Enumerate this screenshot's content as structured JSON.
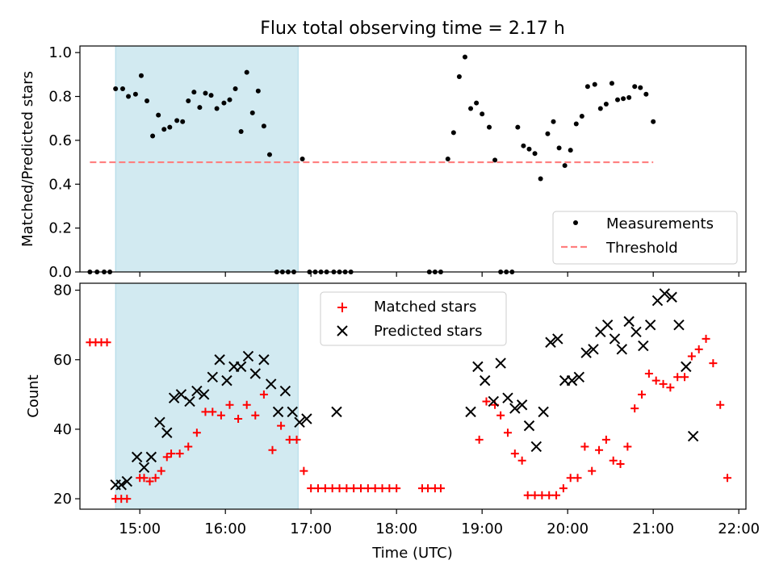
{
  "chart_data": [
    {
      "type": "scatter",
      "title": "Flux total observing time = 2.17 h",
      "xlabel": "",
      "ylabel": "Matched/Predicted stars",
      "xlim": [
        "14:18",
        "22:05"
      ],
      "ylim": [
        0,
        1.03
      ],
      "yticks": [
        0.0,
        0.2,
        0.4,
        0.6,
        0.8,
        1.0
      ],
      "yticklabels": [
        "0.0",
        "0.2",
        "0.4",
        "0.6",
        "0.8",
        "1.0"
      ],
      "xticks": [
        "15:00",
        "16:00",
        "17:00",
        "18:00",
        "19:00",
        "20:00",
        "21:00",
        "22:00"
      ],
      "shaded_region": {
        "x": [
          "14:43",
          "16:51"
        ],
        "color": "#add8e6"
      },
      "legend_position": "lower-right",
      "grid": false,
      "series": [
        {
          "name": "Measurements",
          "marker": "dot",
          "color": "#000000",
          "points": [
            [
              "14:25",
              0
            ],
            [
              "14:30",
              0
            ],
            [
              "14:35",
              0
            ],
            [
              "14:39",
              0
            ],
            [
              "14:43",
              0.835
            ],
            [
              "14:48",
              0.835
            ],
            [
              "14:52",
              0.8
            ],
            [
              "14:57",
              0.81
            ],
            [
              "15:01",
              0.895
            ],
            [
              "15:05",
              0.78
            ],
            [
              "15:09",
              0.62
            ],
            [
              "15:13",
              0.715
            ],
            [
              "15:17",
              0.65
            ],
            [
              "15:21",
              0.66
            ],
            [
              "15:26",
              0.69
            ],
            [
              "15:30",
              0.685
            ],
            [
              "15:34",
              0.78
            ],
            [
              "15:38",
              0.82
            ],
            [
              "15:42",
              0.75
            ],
            [
              "15:46",
              0.815
            ],
            [
              "15:50",
              0.805
            ],
            [
              "15:54",
              0.745
            ],
            [
              "15:59",
              0.77
            ],
            [
              "16:03",
              0.785
            ],
            [
              "16:07",
              0.835
            ],
            [
              "16:11",
              0.64
            ],
            [
              "16:15",
              0.91
            ],
            [
              "16:19",
              0.725
            ],
            [
              "16:23",
              0.825
            ],
            [
              "16:27",
              0.665
            ],
            [
              "16:31",
              0.535
            ],
            [
              "16:36",
              0
            ],
            [
              "16:40",
              0
            ],
            [
              "16:44",
              0
            ],
            [
              "16:48",
              0
            ],
            [
              "16:54",
              0.515
            ],
            [
              "16:59",
              0
            ],
            [
              "17:03",
              0
            ],
            [
              "17:07",
              0
            ],
            [
              "17:11",
              0
            ],
            [
              "17:16",
              0
            ],
            [
              "17:20",
              0
            ],
            [
              "17:24",
              0
            ],
            [
              "17:28",
              0
            ],
            [
              "18:23",
              0
            ],
            [
              "18:27",
              0
            ],
            [
              "18:31",
              0
            ],
            [
              "18:36",
              0.515
            ],
            [
              "18:40",
              0.635
            ],
            [
              "18:44",
              0.89
            ],
            [
              "18:48",
              0.98
            ],
            [
              "18:52",
              0.745
            ],
            [
              "18:56",
              0.77
            ],
            [
              "19:00",
              0.72
            ],
            [
              "19:05",
              0.66
            ],
            [
              "19:09",
              0.51
            ],
            [
              "19:13",
              0
            ],
            [
              "19:17",
              0
            ],
            [
              "19:21",
              0
            ],
            [
              "19:25",
              0.66
            ],
            [
              "19:29",
              0.575
            ],
            [
              "19:33",
              0.56
            ],
            [
              "19:37",
              0.54
            ],
            [
              "19:41",
              0.425
            ],
            [
              "19:46",
              0.63
            ],
            [
              "19:50",
              0.685
            ],
            [
              "19:54",
              0.565
            ],
            [
              "19:58",
              0.485
            ],
            [
              "20:02",
              0.555
            ],
            [
              "20:06",
              0.675
            ],
            [
              "20:10",
              0.71
            ],
            [
              "20:14",
              0.845
            ],
            [
              "20:19",
              0.855
            ],
            [
              "20:23",
              0.745
            ],
            [
              "20:27",
              0.765
            ],
            [
              "20:31",
              0.86
            ],
            [
              "20:35",
              0.785
            ],
            [
              "20:39",
              0.79
            ],
            [
              "20:43",
              0.795
            ],
            [
              "20:47",
              0.845
            ],
            [
              "20:51",
              0.84
            ],
            [
              "20:55",
              0.81
            ],
            [
              "21:00",
              0.685
            ]
          ]
        },
        {
          "name": "Threshold",
          "line": "dashed",
          "color": "#ff7f7f",
          "x": [
            "14:25",
            "21:00"
          ],
          "y": [
            0.5,
            0.5
          ]
        }
      ]
    },
    {
      "type": "scatter",
      "title": "",
      "xlabel": "Time (UTC)",
      "ylabel": "Count",
      "xlim": [
        "14:18",
        "22:05"
      ],
      "ylim": [
        17,
        82
      ],
      "yticks": [
        20,
        40,
        60,
        80
      ],
      "xticks": [
        "15:00",
        "16:00",
        "17:00",
        "18:00",
        "19:00",
        "20:00",
        "21:00",
        "22:00"
      ],
      "shaded_region": {
        "x": [
          "14:43",
          "16:51"
        ],
        "color": "#add8e6"
      },
      "legend_position": "upper-center",
      "grid": false,
      "series": [
        {
          "name": "Matched stars",
          "marker": "plus",
          "color": "#ff0000",
          "points": [
            [
              "14:25",
              65
            ],
            [
              "14:29",
              65
            ],
            [
              "14:33",
              65
            ],
            [
              "14:37",
              65
            ],
            [
              "14:43",
              20
            ],
            [
              "14:47",
              20
            ],
            [
              "14:51",
              20
            ],
            [
              "15:00",
              26
            ],
            [
              "15:03",
              26
            ],
            [
              "15:07",
              25
            ],
            [
              "15:11",
              26
            ],
            [
              "15:15",
              28
            ],
            [
              "15:19",
              32
            ],
            [
              "15:22",
              33
            ],
            [
              "15:28",
              33
            ],
            [
              "15:34",
              35
            ],
            [
              "15:40",
              39
            ],
            [
              "15:46",
              45
            ],
            [
              "15:51",
              45
            ],
            [
              "15:57",
              44
            ],
            [
              "16:03",
              47
            ],
            [
              "16:09",
              43
            ],
            [
              "16:15",
              47
            ],
            [
              "16:21",
              44
            ],
            [
              "16:27",
              50
            ],
            [
              "16:33",
              34
            ],
            [
              "16:39",
              41
            ],
            [
              "16:45",
              37
            ],
            [
              "16:50",
              37
            ],
            [
              "16:55",
              28
            ],
            [
              "17:00",
              23
            ],
            [
              "17:05",
              23
            ],
            [
              "17:10",
              23
            ],
            [
              "17:15",
              23
            ],
            [
              "17:20",
              23
            ],
            [
              "17:25",
              23
            ],
            [
              "17:30",
              23
            ],
            [
              "17:35",
              23
            ],
            [
              "17:40",
              23
            ],
            [
              "17:45",
              23
            ],
            [
              "17:50",
              23
            ],
            [
              "17:55",
              23
            ],
            [
              "18:00",
              23
            ],
            [
              "18:18",
              23
            ],
            [
              "18:22",
              23
            ],
            [
              "18:27",
              23
            ],
            [
              "18:31",
              23
            ],
            [
              "18:58",
              37
            ],
            [
              "19:03",
              48
            ],
            [
              "19:09",
              47
            ],
            [
              "19:13",
              44
            ],
            [
              "19:18",
              39
            ],
            [
              "19:23",
              33
            ],
            [
              "19:28",
              31
            ],
            [
              "19:32",
              21
            ],
            [
              "19:37",
              21
            ],
            [
              "19:42",
              21
            ],
            [
              "19:47",
              21
            ],
            [
              "19:52",
              21
            ],
            [
              "19:57",
              23
            ],
            [
              "20:02",
              26
            ],
            [
              "20:07",
              26
            ],
            [
              "20:12",
              35
            ],
            [
              "20:17",
              28
            ],
            [
              "20:22",
              34
            ],
            [
              "20:27",
              37
            ],
            [
              "20:32",
              31
            ],
            [
              "20:37",
              30
            ],
            [
              "20:42",
              35
            ],
            [
              "20:47",
              46
            ],
            [
              "20:52",
              50
            ],
            [
              "20:57",
              56
            ],
            [
              "21:02",
              54
            ],
            [
              "21:07",
              53
            ],
            [
              "21:12",
              52
            ],
            [
              "21:17",
              55
            ],
            [
              "21:22",
              55
            ],
            [
              "21:27",
              61
            ],
            [
              "21:32",
              63
            ],
            [
              "21:37",
              66
            ],
            [
              "21:42",
              59
            ],
            [
              "21:47",
              47
            ],
            [
              "21:52",
              26
            ]
          ]
        },
        {
          "name": "Predicted stars",
          "marker": "x",
          "color": "#000000",
          "points": [
            [
              "14:43",
              24
            ],
            [
              "14:47",
              24
            ],
            [
              "14:51",
              25
            ],
            [
              "14:58",
              32
            ],
            [
              "15:03",
              29
            ],
            [
              "15:08",
              32
            ],
            [
              "15:14",
              42
            ],
            [
              "15:19",
              39
            ],
            [
              "15:24",
              49
            ],
            [
              "15:29",
              50
            ],
            [
              "15:35",
              48
            ],
            [
              "15:40",
              51
            ],
            [
              "15:45",
              50
            ],
            [
              "15:51",
              55
            ],
            [
              "15:56",
              60
            ],
            [
              "16:01",
              54
            ],
            [
              "16:06",
              58
            ],
            [
              "16:11",
              58
            ],
            [
              "16:16",
              61
            ],
            [
              "16:21",
              56
            ],
            [
              "16:27",
              60
            ],
            [
              "16:32",
              53
            ],
            [
              "16:37",
              45
            ],
            [
              "16:42",
              51
            ],
            [
              "16:47",
              45
            ],
            [
              "16:52",
              42
            ],
            [
              "16:57",
              43
            ],
            [
              "17:18",
              45
            ],
            [
              "18:52",
              45
            ],
            [
              "18:57",
              58
            ],
            [
              "19:02",
              54
            ],
            [
              "19:08",
              48
            ],
            [
              "19:13",
              59
            ],
            [
              "19:18",
              49
            ],
            [
              "19:23",
              46
            ],
            [
              "19:28",
              47
            ],
            [
              "19:33",
              41
            ],
            [
              "19:38",
              35
            ],
            [
              "19:43",
              45
            ],
            [
              "19:48",
              65
            ],
            [
              "19:53",
              66
            ],
            [
              "19:58",
              54
            ],
            [
              "20:03",
              54
            ],
            [
              "20:08",
              55
            ],
            [
              "20:13",
              62
            ],
            [
              "20:18",
              63
            ],
            [
              "20:23",
              68
            ],
            [
              "20:28",
              70
            ],
            [
              "20:33",
              66
            ],
            [
              "20:38",
              63
            ],
            [
              "20:43",
              71
            ],
            [
              "20:48",
              68
            ],
            [
              "20:53",
              64
            ],
            [
              "20:58",
              70
            ],
            [
              "21:03",
              77
            ],
            [
              "21:08",
              79
            ],
            [
              "21:13",
              78
            ],
            [
              "21:18",
              70
            ],
            [
              "21:23",
              58
            ],
            [
              "21:28",
              38
            ]
          ]
        }
      ]
    }
  ]
}
